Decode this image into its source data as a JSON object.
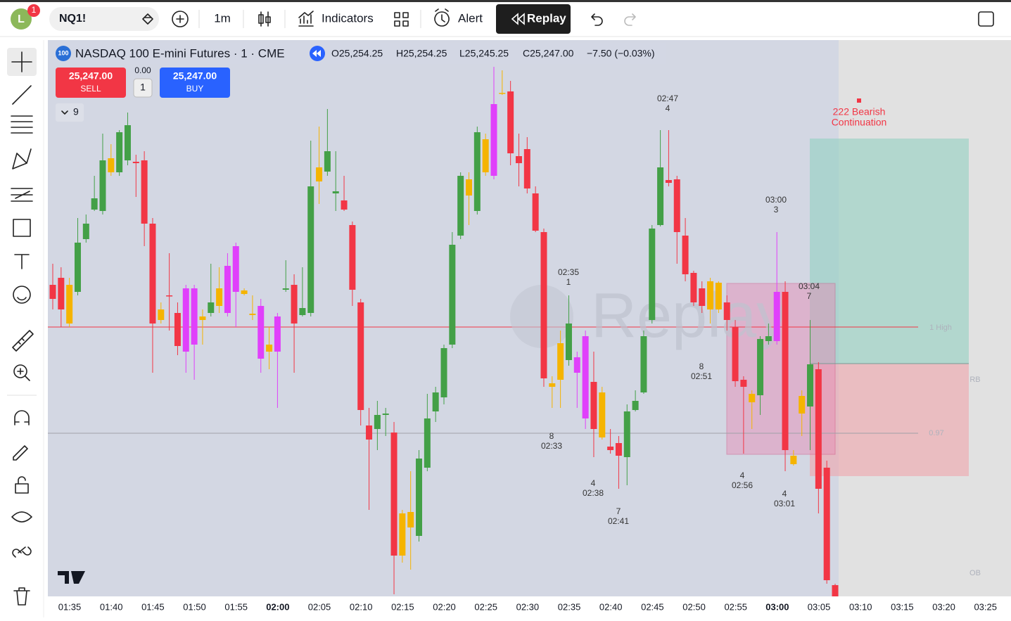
{
  "toolbar": {
    "avatar": "L",
    "badge": "1",
    "symbol": "NQ1!",
    "interval": "1m",
    "indicators": "Indicators",
    "alert": "Alert",
    "replay": "Replay"
  },
  "legend": {
    "badge": "100",
    "title": "NASDAQ 100 E-mini Futures · 1 · CME",
    "open": "O25,254.25",
    "high": "H25,254.25",
    "low": "L25,245.25",
    "close": "C25,247.00",
    "change": "−7.50 (−0.03%)"
  },
  "trade": {
    "sell_price": "25,247.00",
    "sell": "SELL",
    "spread": "0.00",
    "quantity": "1",
    "buy_price": "25,247.00",
    "buy": "BUY",
    "indicators_count": "9"
  },
  "chart_data": {
    "type": "candlestick",
    "ylim": [
      25151.25,
      25349
    ],
    "xticks": [
      "01:35",
      "01:40",
      "01:45",
      "01:50",
      "01:55",
      "02:00",
      "02:05",
      "02:10",
      "02:15",
      "02:20",
      "02:25",
      "02:30",
      "02:35",
      "02:40",
      "02:45",
      "02:50",
      "02:55",
      "03:00",
      "03:05",
      "03:10",
      "03:15",
      "03:20",
      "03:25"
    ],
    "ohlc": [
      [
        25262,
        25269.5,
        25253.25,
        25257
      ],
      [
        25264.5,
        25268.25,
        25247,
        25253.25
      ],
      [
        25248.25,
        25264.5,
        25247,
        25262
      ],
      [
        25259.5,
        25285.75,
        25258.25,
        25277
      ],
      [
        25278.25,
        25287,
        25277,
        25283.75
      ],
      [
        25288.75,
        25300.75,
        25288.25,
        25292.75
      ],
      [
        25288.25,
        25315.75,
        25287,
        25306.25
      ],
      [
        25302,
        25312,
        25300.75,
        25307
      ],
      [
        25302,
        25317,
        25300.75,
        25316.25
      ],
      [
        25306.25,
        25323.25,
        25304.5,
        25318.75
      ],
      [
        25305.75,
        25308.25,
        25293.25,
        25305.25
      ],
      [
        25306.25,
        25309.5,
        25275.75,
        25283.75
      ],
      [
        25283.75,
        25285.75,
        25230.75,
        25248.25
      ],
      [
        25249.5,
        25255.75,
        25248.25,
        25253.25
      ],
      [
        25258.25,
        25273.25,
        25245.75,
        25258
      ],
      [
        25252,
        25255.75,
        25237,
        25240.25
      ],
      [
        25238.25,
        25262,
        25230.75,
        25260.75
      ],
      [
        25260.75,
        25262,
        25228.25,
        25240.75
      ],
      [
        25249.5,
        25253.25,
        25240.75,
        25250.75
      ],
      [
        25252,
        25269.5,
        25250.75,
        25255.75
      ],
      [
        25254.5,
        25268.25,
        25252,
        25260.75
      ],
      [
        25252,
        25273.25,
        25250.75,
        25268.75
      ],
      [
        25275.75,
        25277,
        25247,
        25259.5
      ],
      [
        25258.75,
        25260.75,
        25258.25,
        25260
      ],
      [
        25251.25,
        25258.25,
        25249.5,
        25251.75
      ],
      [
        25254.5,
        25257,
        25230.75,
        25235.75
      ],
      [
        25238.25,
        25247,
        25232,
        25240.75
      ],
      [
        25250.75,
        25252,
        25218.25,
        25238.25
      ],
      [
        25260.25,
        25270.75,
        25259.5,
        25260.75
      ],
      [
        25262,
        25265.75,
        25230.75,
        25248.25
      ],
      [
        25251.25,
        25268.25,
        25250.75,
        25253.75
      ],
      [
        25252,
        25313.25,
        25250.75,
        25297
      ],
      [
        25298.75,
        25318.25,
        25290.75,
        25303.75
      ],
      [
        25302.25,
        25324.5,
        25300.75,
        25309.5
      ],
      [
        25295.25,
        25309.5,
        25288.25,
        25294.5
      ],
      [
        25292,
        25300.75,
        25288.25,
        25288.75
      ],
      [
        25283.25,
        25284.5,
        25254.5,
        25260.25
      ],
      [
        25255.75,
        25257,
        25212,
        25217.5
      ],
      [
        25212,
        25218.25,
        25182,
        25207
      ],
      [
        25210.75,
        25220.75,
        25203.25,
        25215.75
      ],
      [
        25215.75,
        25218.25,
        25208.25,
        25216.25
      ],
      [
        25209.5,
        25213.25,
        25152,
        25165.75
      ],
      [
        25165.75,
        25182,
        25163.25,
        25180.75
      ],
      [
        25175.75,
        25195.75,
        25160.75,
        25181.25
      ],
      [
        25172.75,
        25203.25,
        25170.75,
        25200.25
      ],
      [
        25197,
        25223.25,
        25195.75,
        25214.5
      ],
      [
        25217,
        25225.75,
        25213.25,
        25223.75
      ],
      [
        25222,
        25240.75,
        25219.5,
        25239.5
      ],
      [
        25240.75,
        25280.75,
        25239.5,
        25276.25
      ],
      [
        25279.5,
        25302,
        25278.25,
        25300.75
      ],
      [
        25293.75,
        25302,
        25283.25,
        25299.5
      ],
      [
        25288.25,
        25318.25,
        25287,
        25316.25
      ],
      [
        25302,
        25315.75,
        25300.75,
        25313.75
      ],
      [
        25300.75,
        25339.5,
        25299.5,
        25326.25
      ],
      [
        25330,
        25338.25,
        25329.5,
        25330.25
      ],
      [
        25330.75,
        25334.5,
        25304.5,
        25308.75
      ],
      [
        25307.75,
        25315.75,
        25297,
        25305.25
      ],
      [
        25310.25,
        25314.5,
        25294.5,
        25296.25
      ],
      [
        25294.5,
        25297,
        25280.75,
        25281.25
      ],
      [
        25280.75,
        25282,
        25225.75,
        25228.75
      ],
      [
        25225.75,
        25229.5,
        25218.25,
        25227
      ],
      [
        25228.25,
        25245.75,
        25218.25,
        25241.25
      ],
      [
        25235.25,
        25258.25,
        25233.25,
        25248.25
      ],
      [
        25236.25,
        25238.25,
        25218.25,
        25230.75
      ],
      [
        25243.75,
        25245.75,
        25210.75,
        25214.5
      ],
      [
        25227.5,
        25238.25,
        25200.75,
        25210.75
      ],
      [
        25223.75,
        25225.75,
        25207,
        25207.75
      ],
      [
        25204.5,
        25210.75,
        25202,
        25203.25
      ],
      [
        25205.75,
        25208.25,
        25189.5,
        25201.25
      ],
      [
        25200.75,
        25219.5,
        25190.75,
        25217
      ],
      [
        25217.5,
        25224.5,
        25217,
        25220.75
      ],
      [
        25223.75,
        25245.75,
        25223.25,
        25243.75
      ],
      [
        25249.5,
        25283.25,
        25248.25,
        25282
      ],
      [
        25283.25,
        25317,
        25282.75,
        25303.75
      ],
      [
        25299.25,
        25317,
        25297,
        25298.25
      ],
      [
        25299.5,
        25300.75,
        25269.5,
        25280.75
      ],
      [
        25279.5,
        25285.75,
        25263.25,
        25265.75
      ],
      [
        25266.25,
        25267,
        25254.5,
        25255.75
      ],
      [
        25260.75,
        25263.25,
        25252,
        25254.5
      ],
      [
        25253.25,
        25264.5,
        25248.25,
        25263.25
      ],
      [
        25253.25,
        25263.25,
        25252,
        25262.75
      ],
      [
        25255.75,
        25258.25,
        25245.75,
        25249.5
      ],
      [
        25247,
        25249.5,
        25225.75,
        25227.75
      ],
      [
        25228.25,
        25229.5,
        25202,
        25225.75
      ],
      [
        25220.25,
        25224.5,
        25210.75,
        25223.25
      ],
      [
        25222.75,
        25243.75,
        25215.75,
        25242.75
      ],
      [
        25242,
        25248.25,
        25240.75,
        25243.75
      ],
      [
        25242,
        25280.75,
        25240.75,
        25259.5
      ],
      [
        25259.5,
        25263.25,
        25195.75,
        25203.25
      ],
      [
        25198.25,
        25203.25,
        25197.75,
        25201.25
      ],
      [
        25216.25,
        25224.5,
        25208.25,
        25222.5
      ],
      [
        25218.75,
        25249.5,
        25203.25,
        25233.75
      ],
      [
        25232,
        25234.5,
        25180.75,
        25189.5
      ],
      [
        25197,
        25199.5,
        25155.75,
        25157
      ],
      [
        25155.25,
        25155.75,
        25151.25,
        25151.25
      ]
    ],
    "colors": [
      "#f23645",
      "#f23645",
      "#f5b400",
      "#43a047",
      "#43a047",
      "#43a047",
      "#43a047",
      "#f5b400",
      "#43a047",
      "#43a047",
      "#f23645",
      "#f23645",
      "#f23645",
      "#f5b400",
      "#f23645",
      "#f23645",
      "#e040fb",
      "#e040fb",
      "#f5b400",
      "#43a047",
      "#f5b400",
      "#e040fb",
      "#e040fb",
      "#f5b400",
      "#f5b400",
      "#e040fb",
      "#f5b400",
      "#e040fb",
      "#43a047",
      "#f23645",
      "#43a047",
      "#43a047",
      "#f5b400",
      "#43a047",
      "#43a047",
      "#f23645",
      "#f23645",
      "#f23645",
      "#f23645",
      "#43a047",
      "#43a047",
      "#f23645",
      "#f5b400",
      "#f5b400",
      "#43a047",
      "#43a047",
      "#43a047",
      "#43a047",
      "#43a047",
      "#43a047",
      "#f5b400",
      "#43a047",
      "#f5b400",
      "#e040fb",
      "#f5b400",
      "#f23645",
      "#f23645",
      "#f23645",
      "#f23645",
      "#f23645",
      "#f5b400",
      "#f5b400",
      "#43a047",
      "#e040fb",
      "#e040fb",
      "#f23645",
      "#f5b400",
      "#f23645",
      "#f23645",
      "#43a047",
      "#43a047",
      "#43a047",
      "#43a047",
      "#43a047",
      "#f23645",
      "#f23645",
      "#f23645",
      "#f23645",
      "#f23645",
      "#f5b400",
      "#f5b400",
      "#f23645",
      "#f23645",
      "#f23645",
      "#f5b400",
      "#43a047",
      "#43a047",
      "#e040fb",
      "#f23645",
      "#f5b400",
      "#f5b400",
      "#43a047",
      "#f23645",
      "#f23645",
      "#f23645"
    ],
    "annotations": [
      [
        "02:47",
        "4"
      ],
      [
        "02:35",
        "1"
      ],
      [
        "8",
        "02:33"
      ],
      [
        "4",
        "02:38"
      ],
      [
        "7",
        "02:41"
      ],
      [
        "8",
        "02:51"
      ],
      [
        "4",
        "02:56"
      ],
      [
        "03:00",
        "3"
      ],
      [
        "03:04",
        "7"
      ],
      [
        "4",
        "03:01"
      ]
    ],
    "pattern": [
      "222 Bearish",
      "Continuation"
    ],
    "levels": [
      "1 High",
      "0.97",
      "RB",
      "OB"
    ],
    "watermark": "Replay"
  }
}
